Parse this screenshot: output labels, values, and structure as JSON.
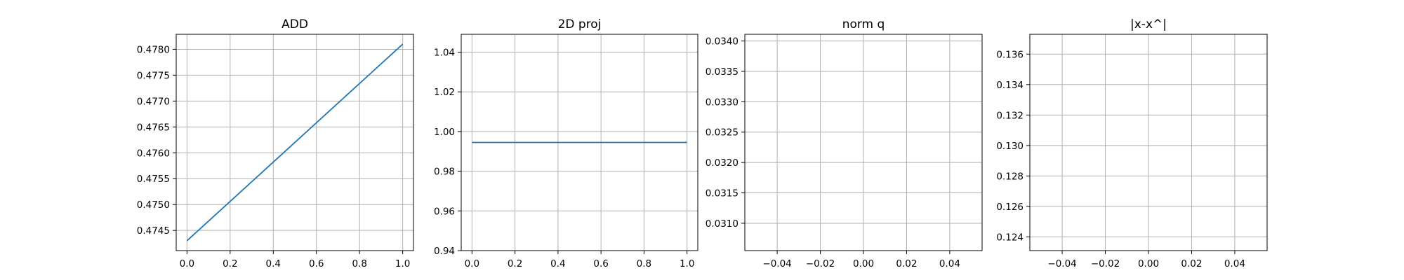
{
  "colors": {
    "series": "#1f77b4",
    "grid": "#b0b0b0",
    "frame": "#000000"
  },
  "chart_data": [
    {
      "type": "line",
      "title": "ADD",
      "xlabel": "",
      "ylabel": "",
      "grid": true,
      "xlim": [
        -0.05,
        1.05
      ],
      "ylim": [
        0.47411,
        0.47829
      ],
      "xticks": [
        0.0,
        0.2,
        0.4,
        0.6,
        0.8,
        1.0
      ],
      "xtick_labels": [
        "0.0",
        "0.2",
        "0.4",
        "0.6",
        "0.8",
        "1.0"
      ],
      "yticks": [
        0.4745,
        0.475,
        0.4755,
        0.476,
        0.4765,
        0.477,
        0.4775,
        0.478
      ],
      "ytick_labels": [
        "0.4745",
        "0.4750",
        "0.4755",
        "0.4760",
        "0.4765",
        "0.4770",
        "0.4775",
        "0.4780"
      ],
      "series": [
        {
          "x": [
            0.0,
            1.0
          ],
          "y": [
            0.4743,
            0.4781
          ]
        }
      ]
    },
    {
      "type": "line",
      "title": "2D proj",
      "xlabel": "",
      "ylabel": "",
      "grid": true,
      "xlim": [
        -0.05,
        1.05
      ],
      "ylim": [
        0.94,
        1.049
      ],
      "xticks": [
        0.0,
        0.2,
        0.4,
        0.6,
        0.8,
        1.0
      ],
      "xtick_labels": [
        "0.0",
        "0.2",
        "0.4",
        "0.6",
        "0.8",
        "1.0"
      ],
      "yticks": [
        0.94,
        0.96,
        0.98,
        1.0,
        1.02,
        1.04
      ],
      "ytick_labels": [
        "0.94",
        "0.96",
        "0.98",
        "1.00",
        "1.02",
        "1.04"
      ],
      "series": [
        {
          "x": [
            0.0,
            1.0
          ],
          "y": [
            0.9945,
            0.9945
          ]
        }
      ]
    },
    {
      "type": "line",
      "title": "norm q",
      "xlabel": "",
      "ylabel": "",
      "grid": true,
      "xlim": [
        -0.055,
        0.055
      ],
      "ylim": [
        0.03055,
        0.03411
      ],
      "xticks": [
        -0.04,
        -0.02,
        0.0,
        0.02,
        0.04
      ],
      "xtick_labels": [
        "−0.04",
        "−0.02",
        "0.00",
        "0.02",
        "0.04"
      ],
      "yticks": [
        0.031,
        0.0315,
        0.032,
        0.0325,
        0.033,
        0.0335,
        0.034
      ],
      "ytick_labels": [
        "0.0310",
        "0.0315",
        "0.0320",
        "0.0325",
        "0.0330",
        "0.0335",
        "0.0340"
      ],
      "series": []
    },
    {
      "type": "line",
      "title": "|x-x^|",
      "xlabel": "",
      "ylabel": "",
      "grid": true,
      "xlim": [
        -0.055,
        0.055
      ],
      "ylim": [
        0.1231,
        0.1373
      ],
      "xticks": [
        -0.04,
        -0.02,
        0.0,
        0.02,
        0.04
      ],
      "xtick_labels": [
        "−0.04",
        "−0.02",
        "0.00",
        "0.02",
        "0.04"
      ],
      "yticks": [
        0.124,
        0.126,
        0.128,
        0.13,
        0.132,
        0.134,
        0.136
      ],
      "ytick_labels": [
        "0.124",
        "0.126",
        "0.128",
        "0.130",
        "0.132",
        "0.134",
        "0.136"
      ],
      "series": []
    }
  ]
}
